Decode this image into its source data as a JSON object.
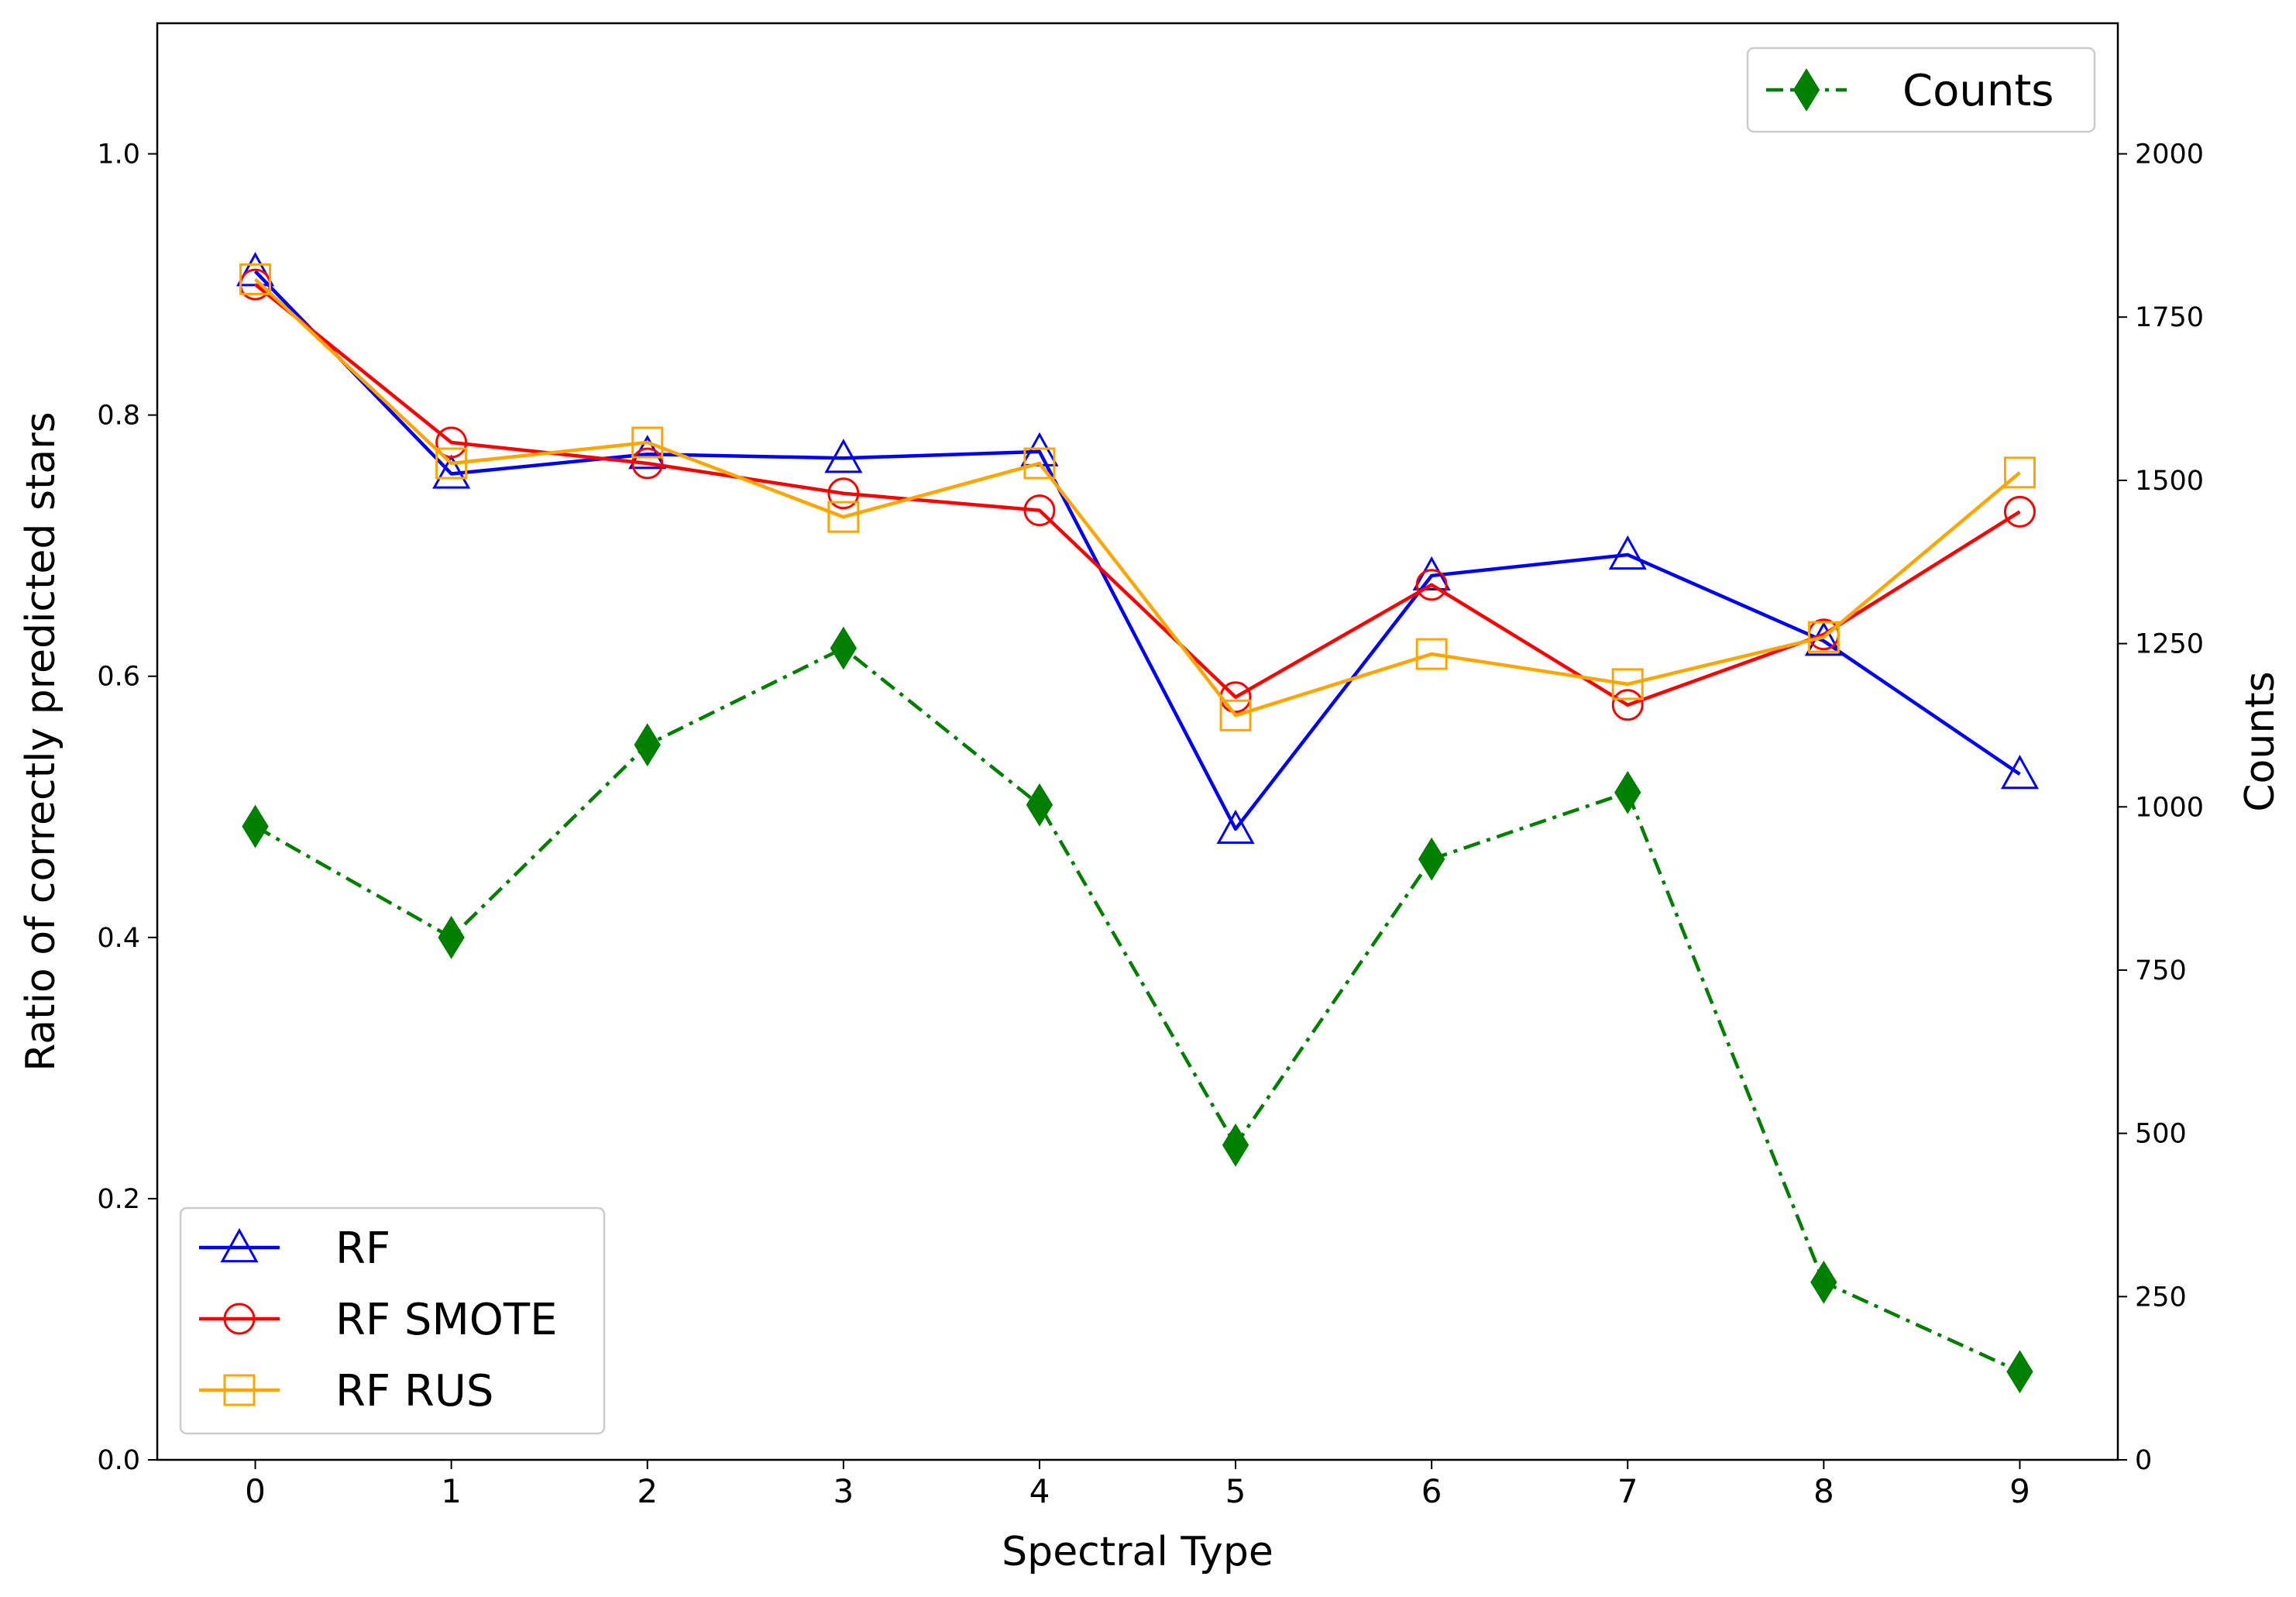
{
  "chart_data": {
    "type": "line",
    "x": [
      0,
      1,
      2,
      3,
      4,
      5,
      6,
      7,
      8,
      9
    ],
    "xlabel": "Spectral Type",
    "ylabel": "Ratio of correctly predicted stars",
    "y2label": "Counts",
    "xlim": [
      -0.5,
      9.5
    ],
    "ylim": [
      0,
      1.1
    ],
    "y2lim": [
      0,
      2200
    ],
    "xticks": [
      "0",
      "1",
      "2",
      "3",
      "4",
      "5",
      "6",
      "7",
      "8",
      "9"
    ],
    "yticks": [
      "0.0",
      "0.2",
      "0.4",
      "0.6",
      "0.8",
      "1.0"
    ],
    "y2ticks": [
      "0",
      "250",
      "500",
      "750",
      "1000",
      "1250",
      "1500",
      "1750",
      "2000"
    ],
    "grid": false,
    "series": [
      {
        "name": "RF",
        "axis": "left",
        "color": "#0000ff",
        "marker": "triangle",
        "values": [
          0.91,
          0.755,
          0.77,
          0.767,
          0.772,
          0.483,
          0.677,
          0.693,
          0.627,
          0.525
        ]
      },
      {
        "name": "RF SMOTE",
        "axis": "left",
        "color": "#ff0000",
        "marker": "circle",
        "values": [
          0.9,
          0.779,
          0.763,
          0.74,
          0.727,
          0.584,
          0.67,
          0.578,
          0.632,
          0.726
        ]
      },
      {
        "name": "RF RUS",
        "axis": "left",
        "color": "#ffa500",
        "marker": "square",
        "values": [
          0.904,
          0.763,
          0.779,
          0.722,
          0.763,
          0.57,
          0.617,
          0.594,
          0.63,
          0.756
        ]
      },
      {
        "name": "Counts",
        "axis": "right",
        "color": "#008000",
        "marker": "diamond",
        "dash": "dashdot",
        "values": [
          970,
          800,
          1095,
          1243,
          1003,
          482,
          920,
          1022,
          272,
          135
        ]
      }
    ],
    "legends": [
      {
        "position": "lower-left",
        "entries": [
          "RF",
          "RF SMOTE",
          "RF RUS"
        ]
      },
      {
        "position": "upper-right",
        "entries": [
          "Counts"
        ]
      }
    ]
  }
}
